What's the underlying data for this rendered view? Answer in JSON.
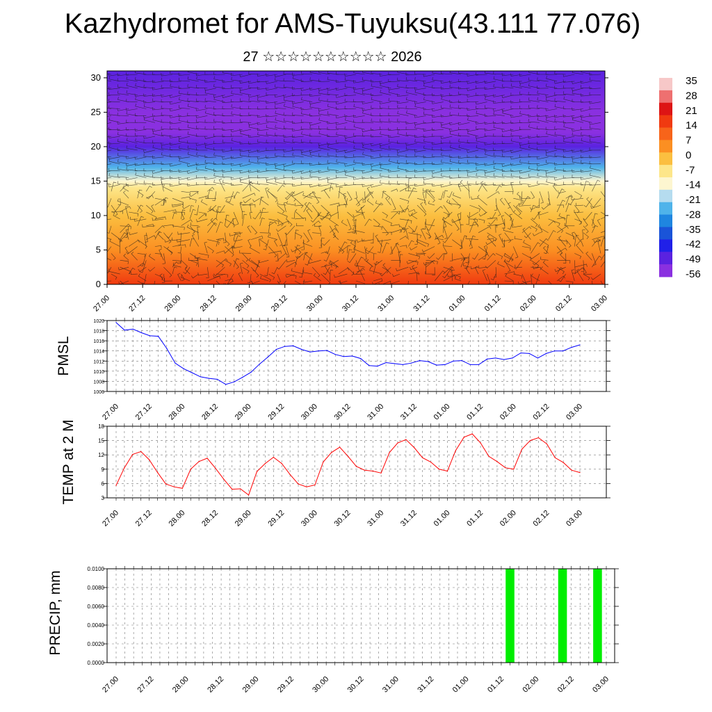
{
  "title": "Kazhydromet for AMS-Tuyuksu(43.111 77.076)",
  "subtitle": "27 ☆☆☆☆☆☆☆☆☆☆ 2026",
  "chart_data": [
    {
      "type": "heatmap",
      "panel": "cross-section",
      "title": "",
      "xlabel": "",
      "ylabel": "",
      "x_tick_labels": [
        "27.00",
        "27.12",
        "28.00",
        "28.12",
        "29.00",
        "29.12",
        "30.00",
        "30.12",
        "31.00",
        "31.12",
        "01.00",
        "01.12",
        "02.00",
        "02.12",
        "03.00"
      ],
      "y_ticks": [
        0,
        5,
        10,
        15,
        20,
        25,
        30
      ],
      "ylim": [
        0,
        31
      ],
      "colorbar_labels": [
        "35",
        "28",
        "21",
        "14",
        "7",
        "0",
        "-7",
        "-14",
        "-21",
        "-28",
        "-35",
        "-42",
        "-49",
        "-56"
      ],
      "colorbar_colors": [
        "#f7c8c8",
        "#ee7070",
        "#dd1414",
        "#f03a10",
        "#f7641a",
        "#fb8f22",
        "#fbbf40",
        "#fde68a",
        "#fdf6d0",
        "#b5dcef",
        "#4fb3ea",
        "#1f86e0",
        "#1a54d8",
        "#2020e8",
        "#5a22e0",
        "#8a30e0"
      ],
      "temperature_layers": [
        {
          "height": 0,
          "value": 14
        },
        {
          "height": 5,
          "value": 7
        },
        {
          "height": 10,
          "value": 0
        },
        {
          "height": 14,
          "value": -7
        },
        {
          "height": 15,
          "value": -14
        },
        {
          "height": 17,
          "value": -28
        },
        {
          "height": 20,
          "value": -49
        },
        {
          "height": 22,
          "value": -56
        },
        {
          "height": 25,
          "value": -56
        },
        {
          "height": 31,
          "value": -49
        }
      ]
    },
    {
      "type": "line",
      "panel": "pmsl",
      "ylabel": "PMSL",
      "ylim": [
        1006,
        1020
      ],
      "y_ticks": [
        1006,
        1008,
        1010,
        1012,
        1014,
        1016,
        1018,
        1020
      ],
      "x_tick_labels": [
        "27.00",
        "27.12",
        "28.00",
        "28.12",
        "29.00",
        "29.12",
        "30.00",
        "30.12",
        "31.00",
        "31.12",
        "01.00",
        "01.12",
        "02.00",
        "02.12",
        "03.00"
      ],
      "series": [
        {
          "color": "#0000ff",
          "values": [
            1019.6,
            1018.1,
            1018.3,
            1017.6,
            1017,
            1016.9,
            1014.5,
            1011.6,
            1010.5,
            1009.7,
            1008.9,
            1008.6,
            1008.4,
            1007.4,
            1007.9,
            1008.8,
            1009.8,
            1011.4,
            1012.8,
            1014.3,
            1014.9,
            1015,
            1014.3,
            1013.8,
            1014,
            1014.1,
            1013.3,
            1012.9,
            1013,
            1012.5,
            1011.1,
            1011,
            1011.7,
            1011.5,
            1011.3,
            1011.6,
            1012.1,
            1011.9,
            1011.2,
            1011.3,
            1012,
            1012.1,
            1011.3,
            1011.3,
            1012.4,
            1012.6,
            1012.3,
            1012.6,
            1013.6,
            1013.5,
            1012.6,
            1013.5,
            1014,
            1014,
            1014.7,
            1015.2
          ]
        }
      ]
    },
    {
      "type": "line",
      "panel": "temp2m",
      "ylabel": "TEMP at 2 M",
      "ylim": [
        3,
        18
      ],
      "y_ticks": [
        3,
        6,
        9,
        12,
        15,
        18
      ],
      "x_tick_labels": [
        "27.00",
        "27.12",
        "28.00",
        "28.12",
        "29.00",
        "29.12",
        "30.00",
        "30.12",
        "31.00",
        "31.12",
        "01.00",
        "01.12",
        "02.00",
        "02.12",
        "03.00"
      ],
      "series": [
        {
          "color": "#ff0000",
          "values": [
            5.6,
            9.3,
            12.1,
            12.7,
            11,
            8.3,
            5.9,
            5.3,
            5,
            9,
            10.6,
            11.3,
            9.2,
            6.9,
            4.8,
            4.9,
            3.6,
            8.5,
            10.2,
            11.5,
            10.2,
            7.9,
            5.9,
            5.3,
            5.7,
            10.5,
            12.5,
            13.6,
            11.7,
            9.6,
            8.8,
            8.6,
            8.2,
            12.5,
            14.5,
            15.2,
            13.5,
            11.4,
            10.5,
            9,
            8.6,
            12.9,
            15.7,
            16.4,
            14.5,
            11.7,
            10.6,
            9.3,
            9,
            13.2,
            15,
            15.6,
            14.3,
            11.4,
            10.4,
            8.8,
            8.3
          ]
        }
      ]
    },
    {
      "type": "bar",
      "panel": "precip",
      "ylabel": "PRECIP, mm",
      "ylim": [
        0,
        0.01
      ],
      "y_tick_labels": [
        "0.0000",
        "0.0020",
        "0.0040",
        "0.0060",
        "0.0080",
        "0.0100"
      ],
      "x_tick_labels": [
        "27.00",
        "27.12",
        "28.00",
        "28.12",
        "29.00",
        "29.12",
        "30.00",
        "30.12",
        "31.00",
        "31.12",
        "01.00",
        "01.12",
        "02.00",
        "02.12",
        "03.00"
      ],
      "bar_color": "#00ee00",
      "bars": [
        {
          "time_step": 45,
          "value": 0.01
        },
        {
          "time_step": 51,
          "value": 0.01
        },
        {
          "time_step": 55,
          "value": 0.01
        }
      ]
    }
  ]
}
